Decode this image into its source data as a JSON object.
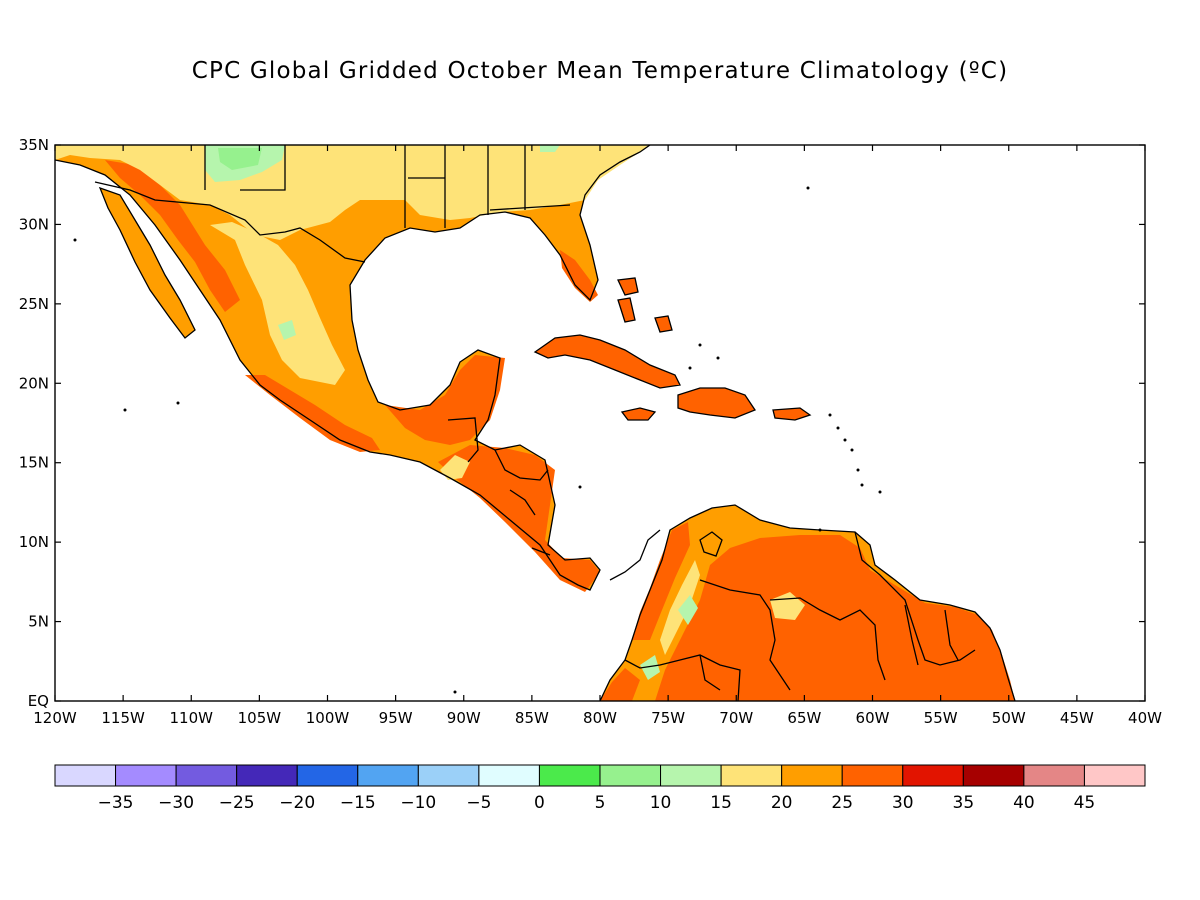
{
  "title": "CPC Global Gridded October Mean Temperature Climatology (ºC)",
  "map": {
    "lon_range": [
      -120,
      -40
    ],
    "lat_range": [
      0,
      35
    ],
    "x_ticks": [
      "120W",
      "115W",
      "110W",
      "105W",
      "100W",
      "95W",
      "90W",
      "85W",
      "80W",
      "75W",
      "70W",
      "65W",
      "60W",
      "55W",
      "50W",
      "45W",
      "40W"
    ],
    "y_ticks": [
      "EQ",
      "5N",
      "10N",
      "15N",
      "20N",
      "25N",
      "30N",
      "35N"
    ]
  },
  "colorbar": {
    "colors": [
      "#d9d7ff",
      "#a48bff",
      "#735be0",
      "#4428b8",
      "#2366e6",
      "#52a4f2",
      "#9bd0f8",
      "#e0fdff",
      "#4bea4b",
      "#96f18e",
      "#b6f5ad",
      "#fee378",
      "#ff9e00",
      "#ff6200",
      "#e21400",
      "#a60000",
      "#e48686",
      "#ffc7c7"
    ],
    "labels": [
      "−35",
      "−30",
      "−25",
      "−20",
      "−15",
      "−10",
      "−5",
      "0",
      "5",
      "10",
      "15",
      "20",
      "25",
      "30",
      "35",
      "40",
      "45"
    ]
  }
}
